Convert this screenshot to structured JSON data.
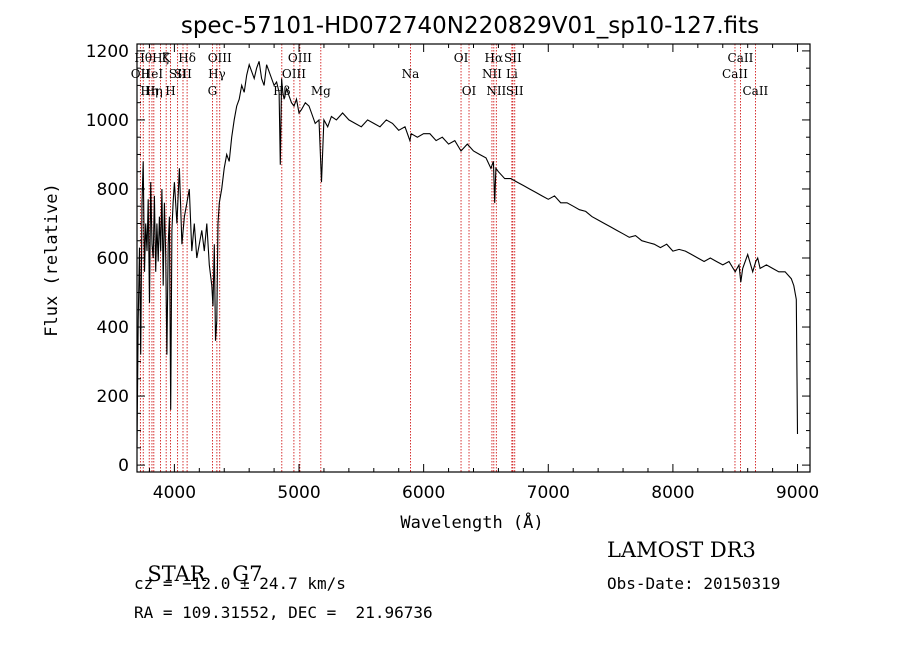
{
  "chart_data": {
    "type": "line",
    "title": "spec-57101-HD072740N220829V01_sp10-127.fits",
    "xlabel": "Wavelength (Å)",
    "ylabel": "Flux (relative)",
    "xlim": [
      3700,
      9100
    ],
    "ylim": [
      -20,
      1220
    ],
    "x_ticks": [
      4000,
      5000,
      6000,
      7000,
      8000,
      9000
    ],
    "y_ticks": [
      0,
      200,
      400,
      600,
      800,
      1000,
      1200
    ],
    "grid": false,
    "legend": "none",
    "line_color": "#000000",
    "marker_color": "#cc0000",
    "series": [
      {
        "x": [
          3700,
          3710,
          3720,
          3730,
          3740,
          3750,
          3760,
          3770,
          3780,
          3790,
          3800,
          3810,
          3820,
          3830,
          3840,
          3850,
          3860,
          3870,
          3880,
          3890,
          3900,
          3910,
          3920,
          3930,
          3940,
          3950,
          3960,
          3970,
          3980,
          3990,
          4000,
          4020,
          4040,
          4060,
          4080,
          4100,
          4120,
          4140,
          4160,
          4180,
          4200,
          4220,
          4240,
          4260,
          4280,
          4300,
          4310,
          4320,
          4330,
          4340,
          4350,
          4360,
          4380,
          4400,
          4420,
          4440,
          4460,
          4480,
          4500,
          4520,
          4540,
          4560,
          4580,
          4600,
          4620,
          4640,
          4660,
          4680,
          4700,
          4720,
          4740,
          4760,
          4780,
          4800,
          4820,
          4840,
          4850,
          4860,
          4870,
          4880,
          4900,
          4920,
          4940,
          4960,
          4980,
          5000,
          5020,
          5050,
          5080,
          5100,
          5130,
          5160,
          5180,
          5200,
          5230,
          5260,
          5300,
          5350,
          5400,
          5450,
          5500,
          5550,
          5600,
          5650,
          5700,
          5750,
          5800,
          5850,
          5890,
          5900,
          5950,
          6000,
          6050,
          6100,
          6150,
          6200,
          6250,
          6300,
          6350,
          6400,
          6450,
          6500,
          6540,
          6560,
          6570,
          6580,
          6600,
          6650,
          6700,
          6750,
          6800,
          6850,
          6900,
          6950,
          7000,
          7050,
          7100,
          7150,
          7200,
          7250,
          7300,
          7350,
          7400,
          7450,
          7500,
          7550,
          7600,
          7650,
          7700,
          7750,
          7800,
          7850,
          7900,
          7950,
          8000,
          8050,
          8100,
          8150,
          8200,
          8250,
          8300,
          8350,
          8400,
          8450,
          8500,
          8530,
          8545,
          8560,
          8600,
          8640,
          8665,
          8680,
          8700,
          8750,
          8800,
          8850,
          8900,
          8950,
          8970,
          8990,
          9000
        ],
        "y": [
          50,
          420,
          630,
          320,
          760,
          880,
          560,
          700,
          620,
          770,
          470,
          820,
          640,
          600,
          780,
          560,
          700,
          590,
          720,
          620,
          800,
          520,
          760,
          610,
          320,
          640,
          720,
          160,
          680,
          760,
          820,
          700,
          860,
          640,
          720,
          760,
          800,
          620,
          700,
          600,
          640,
          680,
          620,
          700,
          580,
          520,
          460,
          640,
          360,
          420,
          700,
          760,
          800,
          860,
          900,
          880,
          950,
          1000,
          1040,
          1060,
          1100,
          1080,
          1130,
          1160,
          1140,
          1120,
          1150,
          1170,
          1120,
          1100,
          1160,
          1140,
          1120,
          1100,
          1110,
          1080,
          870,
          1120,
          1080,
          1060,
          1090,
          1070,
          1050,
          1040,
          1060,
          1020,
          1030,
          1050,
          1040,
          1020,
          990,
          1000,
          820,
          1000,
          980,
          1010,
          1000,
          1020,
          1000,
          990,
          980,
          1000,
          990,
          980,
          1000,
          990,
          970,
          980,
          940,
          960,
          950,
          960,
          960,
          940,
          950,
          930,
          940,
          910,
          930,
          910,
          900,
          890,
          860,
          880,
          760,
          860,
          850,
          830,
          830,
          820,
          810,
          800,
          790,
          780,
          770,
          780,
          760,
          760,
          750,
          740,
          735,
          720,
          710,
          700,
          690,
          680,
          670,
          660,
          665,
          650,
          645,
          640,
          630,
          640,
          620,
          625,
          620,
          610,
          600,
          590,
          600,
          590,
          580,
          590,
          560,
          580,
          530,
          570,
          610,
          560,
          590,
          600,
          570,
          580,
          570,
          560,
          560,
          540,
          520,
          480,
          90
        ]
      }
    ],
    "line_markers": [
      {
        "x": 3727,
        "label": "OII",
        "row": 2
      },
      {
        "x": 3750,
        "label": "Hθ",
        "row": 1
      },
      {
        "x": 3798,
        "label": "Hη",
        "row": 3
      },
      {
        "x": 3820,
        "label": "HeI",
        "row": 2
      },
      {
        "x": 3835,
        "label": "Hη",
        "row": 3
      },
      {
        "x": 3889,
        "label": "Hζ",
        "row": 1
      },
      {
        "x": 3934,
        "label": "K",
        "row": 1
      },
      {
        "x": 3969,
        "label": "H",
        "row": 3
      },
      {
        "x": 4026,
        "label": "SII",
        "row": 2
      },
      {
        "x": 4069,
        "label": "SII",
        "row": 2
      },
      {
        "x": 4102,
        "label": "Hδ",
        "row": 1
      },
      {
        "x": 4305,
        "label": "G",
        "row": 3
      },
      {
        "x": 4341,
        "label": "Hγ",
        "row": 2
      },
      {
        "x": 4364,
        "label": "OIII",
        "row": 1
      },
      {
        "x": 4862,
        "label": "Hβ",
        "row": 3
      },
      {
        "x": 4959,
        "label": "OIII",
        "row": 2
      },
      {
        "x": 5007,
        "label": "OIII",
        "row": 1
      },
      {
        "x": 5175,
        "label": "Mg",
        "row": 3
      },
      {
        "x": 5894,
        "label": "Na",
        "row": 2
      },
      {
        "x": 6300,
        "label": "OI",
        "row": 1
      },
      {
        "x": 6364,
        "label": "OI",
        "row": 3
      },
      {
        "x": 6548,
        "label": "NII",
        "row": 2
      },
      {
        "x": 6563,
        "label": "Hα",
        "row": 1
      },
      {
        "x": 6583,
        "label": "NII",
        "row": 3
      },
      {
        "x": 6708,
        "label": "Li",
        "row": 2
      },
      {
        "x": 6716,
        "label": "SII",
        "row": 1
      },
      {
        "x": 6731,
        "label": "SII",
        "row": 3
      },
      {
        "x": 8498,
        "label": "CaII",
        "row": 2
      },
      {
        "x": 8542,
        "label": "CaII",
        "row": 1
      },
      {
        "x": 8662,
        "label": "CaII",
        "row": 3
      }
    ]
  },
  "info": {
    "class_label": "STAR",
    "subclass": "G7",
    "survey": "LAMOST DR3",
    "redshift": "cz = −12.0 ± 24.7 km/s",
    "obs_date": "Obs-Date: 20150319",
    "coords": "RA = 109.31552, DEC =  21.96736"
  }
}
